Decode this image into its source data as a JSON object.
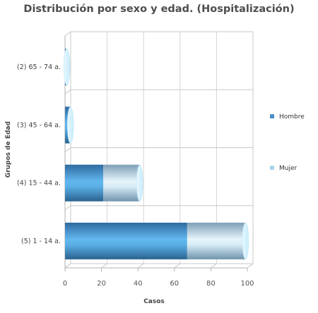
{
  "chart_data": {
    "type": "bar",
    "orientation": "horizontal",
    "stacked": true,
    "title": "Distribución por sexo y edad. (Hospitalización)",
    "xlabel": "Casos",
    "ylabel": "Grupos de Edad",
    "categories": [
      "(2) 65 - 74 a.",
      "(3) 45 - 64 a.",
      "(4) 15 - 44 a.",
      "(5) 1 - 14 a."
    ],
    "series": [
      {
        "name": "Hombre",
        "values": [
          1,
          3,
          21,
          67
        ]
      },
      {
        "name": "Mujer",
        "values": [
          0,
          0,
          20,
          32
        ]
      }
    ],
    "xlim": [
      0,
      100
    ],
    "xticks": [
      0,
      20,
      40,
      60,
      80,
      100
    ],
    "grid": true,
    "legend_position": "right",
    "colors": {
      "hombre": "#4a8fc9",
      "mujer": "#a9d3ec"
    }
  }
}
